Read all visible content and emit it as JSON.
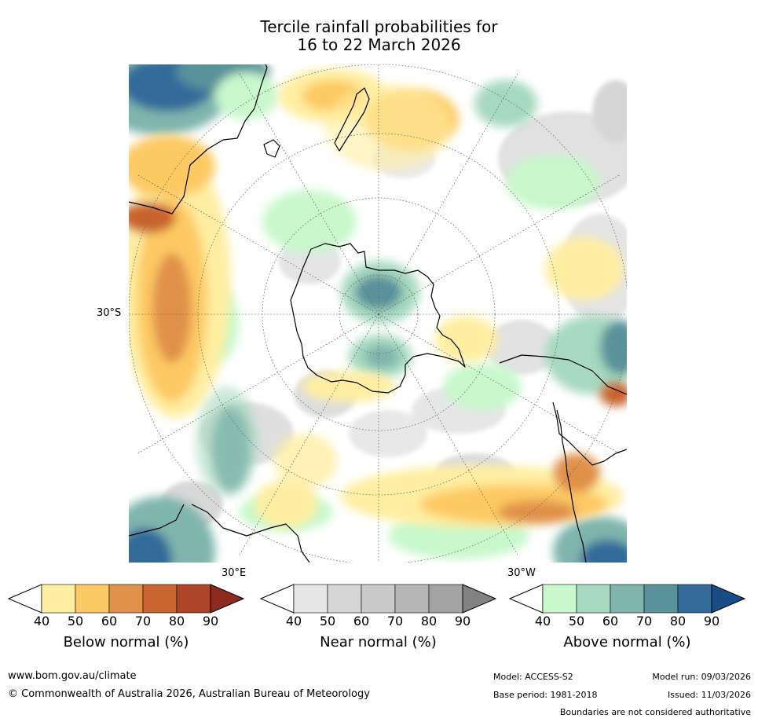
{
  "title": {
    "line1": "Tercile rainfall probabilities for",
    "line2": "16 to 22 March 2026"
  },
  "map": {
    "lat_label": "30°S",
    "lon_labels": [
      "30°E",
      "30°W"
    ]
  },
  "colorbars": [
    {
      "title": "Below normal (%)",
      "ticks": [
        "40",
        "50",
        "60",
        "70",
        "80",
        "90"
      ],
      "colors": [
        "#ffeea2",
        "#fdc964",
        "#e0914a",
        "#c9632f",
        "#ae4528",
        "#8e2a1e"
      ]
    },
    {
      "title": "Near normal (%)",
      "ticks": [
        "40",
        "50",
        "60",
        "70",
        "80",
        "90"
      ],
      "colors": [
        "#e6e6e6",
        "#d6d6d6",
        "#c9c9c9",
        "#b6b6b6",
        "#a3a3a3",
        "#828282"
      ]
    },
    {
      "title": "Above normal (%)",
      "ticks": [
        "40",
        "50",
        "60",
        "70",
        "80",
        "90"
      ],
      "colors": [
        "#c8f8cc",
        "#a6d9bf",
        "#7fb5ad",
        "#5a929b",
        "#336a9a",
        "#174c86"
      ]
    }
  ],
  "footer": {
    "url": "www.bom.gov.au/climate",
    "copyright": "© Commonwealth of Australia 2026, Australian Bureau of Meteorology",
    "model": "Model: ACCESS-S2",
    "base_period": "Base period: 1981-2018",
    "model_run": "Model run: 09/03/2026",
    "issued": "Issued: 11/03/2026",
    "disclaimer": "Boundaries are not considered authoritative"
  }
}
